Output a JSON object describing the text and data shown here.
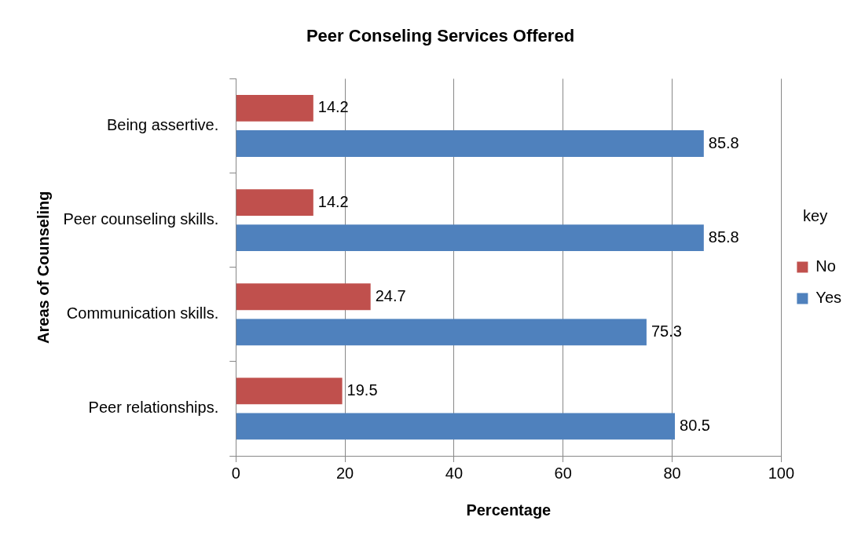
{
  "chart_data": {
    "type": "bar",
    "orientation": "horizontal",
    "title": "Peer Conseling Services Offered",
    "xlabel": "Percentage",
    "ylabel": "Areas of Counseling",
    "legend_title": "key",
    "categories": [
      "Being assertive.",
      "Peer counseling skills.",
      "Communication skills.",
      "Peer relationships."
    ],
    "series": [
      {
        "name": "No",
        "color": "#c0504d",
        "values": [
          14.2,
          14.2,
          24.7,
          19.5
        ]
      },
      {
        "name": "Yes",
        "color": "#4f81bd",
        "values": [
          85.8,
          85.8,
          75.3,
          80.5
        ]
      }
    ],
    "xlim": [
      0,
      100
    ],
    "xticks": [
      0,
      20,
      40,
      60,
      80,
      100
    ],
    "grid": "x",
    "legend": "right",
    "data_labels": true
  }
}
